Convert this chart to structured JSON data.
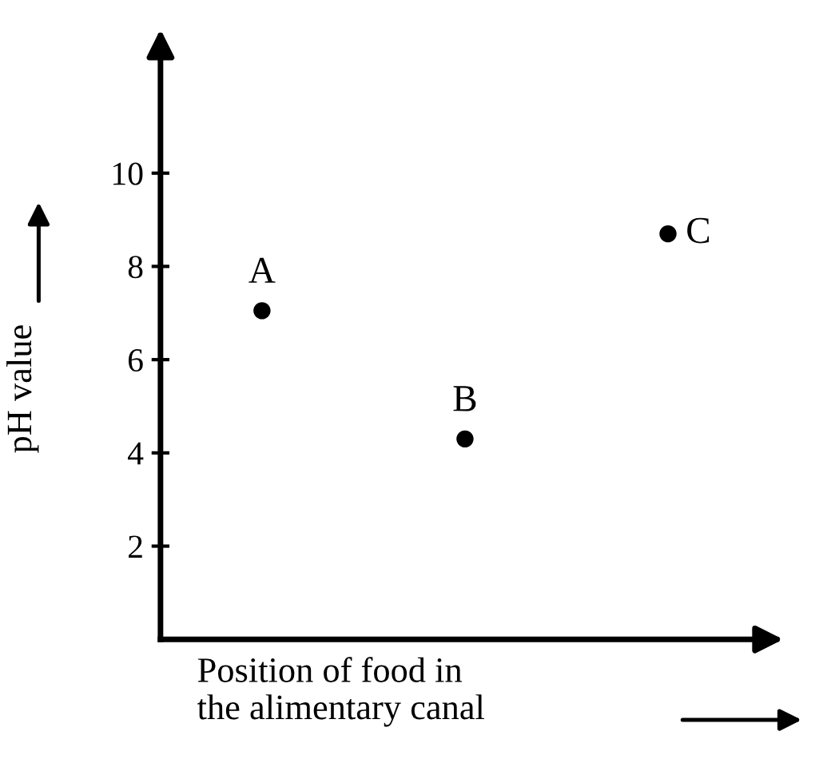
{
  "chart_data": {
    "type": "scatter",
    "xlabel": "Position of food in\nthe alimentary canal",
    "ylabel": "pH value",
    "categories": [
      null,
      null,
      null
    ],
    "series": [
      {
        "name": "A",
        "color": "#000000",
        "values": [
          7.05,
          null,
          null
        ]
      },
      {
        "name": "B",
        "color": "#000000",
        "values": [
          null,
          4.3,
          null
        ]
      },
      {
        "name": "C",
        "color": "#000000",
        "values": [
          null,
          null,
          8.7
        ]
      }
    ],
    "ylim": [
      0,
      12.8
    ],
    "yticks": [
      2,
      4,
      6,
      8,
      10
    ],
    "marker": "circle",
    "grid": false,
    "legend": false
  }
}
